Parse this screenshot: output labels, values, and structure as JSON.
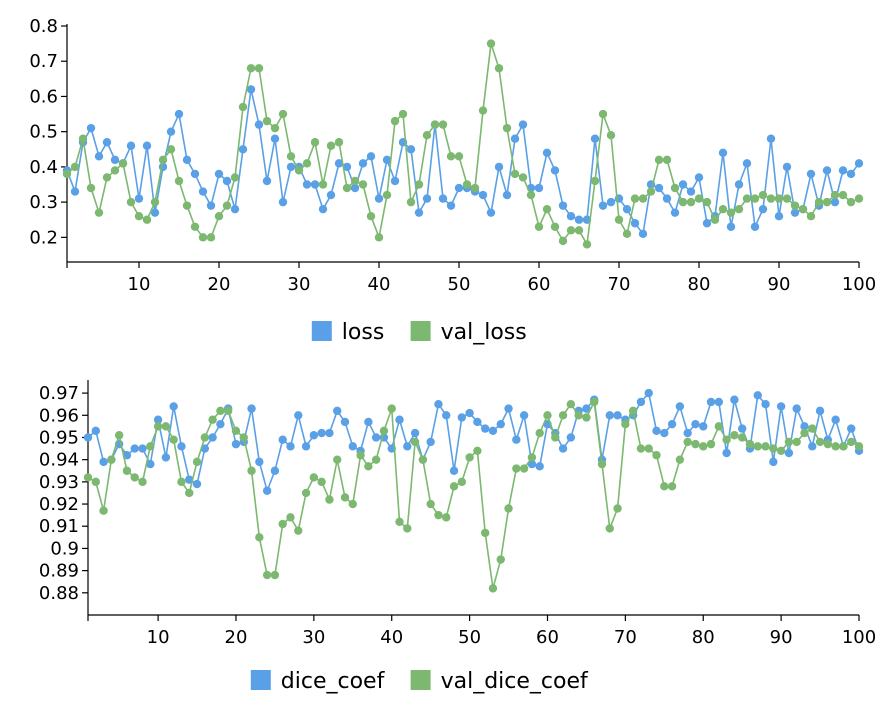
{
  "colors": {
    "series_a": "#5aa0e6",
    "series_b": "#7cb870"
  },
  "chart_data": [
    {
      "type": "line",
      "title": "",
      "xlabel": "",
      "ylabel": "",
      "xlim": [
        1,
        100
      ],
      "ylim": [
        0.13,
        0.8
      ],
      "x_ticks": [
        10,
        20,
        30,
        40,
        50,
        60,
        70,
        80,
        90,
        100
      ],
      "y_ticks": [
        0.2,
        0.3,
        0.4,
        0.5,
        0.6,
        0.7,
        0.8
      ],
      "grid": false,
      "legend_position": "bottom",
      "x": [
        1,
        2,
        3,
        4,
        5,
        6,
        7,
        8,
        9,
        10,
        11,
        12,
        13,
        14,
        15,
        16,
        17,
        18,
        19,
        20,
        21,
        22,
        23,
        24,
        25,
        26,
        27,
        28,
        29,
        30,
        31,
        32,
        33,
        34,
        35,
        36,
        37,
        38,
        39,
        40,
        41,
        42,
        43,
        44,
        45,
        46,
        47,
        48,
        49,
        50,
        51,
        52,
        53,
        54,
        55,
        56,
        57,
        58,
        59,
        60,
        61,
        62,
        63,
        64,
        65,
        66,
        67,
        68,
        69,
        70,
        71,
        72,
        73,
        74,
        75,
        76,
        77,
        78,
        79,
        80,
        81,
        82,
        83,
        84,
        85,
        86,
        87,
        88,
        89,
        90,
        91,
        92,
        93,
        94,
        95,
        96,
        97,
        98,
        99,
        100
      ],
      "series": [
        {
          "name": "loss",
          "color": "#5aa0e6",
          "values": [
            0.39,
            0.33,
            0.47,
            0.51,
            0.43,
            0.47,
            0.42,
            0.41,
            0.46,
            0.31,
            0.46,
            0.27,
            0.4,
            0.5,
            0.55,
            0.42,
            0.38,
            0.33,
            0.29,
            0.38,
            0.36,
            0.28,
            0.45,
            0.62,
            0.52,
            0.36,
            0.48,
            0.3,
            0.4,
            0.4,
            0.35,
            0.35,
            0.28,
            0.32,
            0.41,
            0.4,
            0.34,
            0.41,
            0.43,
            0.31,
            0.42,
            0.36,
            0.47,
            0.45,
            0.27,
            0.31,
            0.52,
            0.31,
            0.29,
            0.34,
            0.34,
            0.33,
            0.32,
            0.27,
            0.4,
            0.32,
            0.48,
            0.52,
            0.34,
            0.34,
            0.44,
            0.39,
            0.29,
            0.26,
            0.25,
            0.25,
            0.48,
            0.29,
            0.3,
            0.31,
            0.28,
            0.24,
            0.21,
            0.35,
            0.34,
            0.31,
            0.27,
            0.35,
            0.33,
            0.37,
            0.24,
            0.26,
            0.44,
            0.23,
            0.35,
            0.41,
            0.23,
            0.28,
            0.48,
            0.26,
            0.4,
            0.27,
            0.28,
            0.38,
            0.29,
            0.39,
            0.3,
            0.39,
            0.38,
            0.41
          ]
        },
        {
          "name": "val_loss",
          "color": "#7cb870",
          "values": [
            0.38,
            0.4,
            0.48,
            0.34,
            0.27,
            0.37,
            0.39,
            0.41,
            0.3,
            0.26,
            0.25,
            0.3,
            0.42,
            0.45,
            0.36,
            0.29,
            0.23,
            0.2,
            0.2,
            0.26,
            0.29,
            0.37,
            0.57,
            0.68,
            0.68,
            0.53,
            0.51,
            0.55,
            0.43,
            0.39,
            0.41,
            0.47,
            0.35,
            0.46,
            0.47,
            0.34,
            0.36,
            0.35,
            0.26,
            0.2,
            0.32,
            0.53,
            0.55,
            0.3,
            0.35,
            0.49,
            0.52,
            0.52,
            0.43,
            0.43,
            0.35,
            0.34,
            0.56,
            0.75,
            0.68,
            0.51,
            0.38,
            0.37,
            0.32,
            0.23,
            0.28,
            0.23,
            0.19,
            0.22,
            0.22,
            0.18,
            0.36,
            0.55,
            0.49,
            0.25,
            0.21,
            0.31,
            0.31,
            0.33,
            0.42,
            0.42,
            0.34,
            0.3,
            0.3,
            0.31,
            0.3,
            0.25,
            0.28,
            0.27,
            0.28,
            0.31,
            0.31,
            0.32,
            0.31,
            0.31,
            0.31,
            0.29,
            0.28,
            0.26,
            0.3,
            0.3,
            0.32,
            0.32,
            0.3,
            0.31
          ]
        }
      ]
    },
    {
      "type": "line",
      "title": "",
      "xlabel": "",
      "ylabel": "",
      "xlim": [
        1,
        100
      ],
      "ylim": [
        0.87,
        0.975
      ],
      "x_ticks": [
        10,
        20,
        30,
        40,
        50,
        60,
        70,
        80,
        90,
        100
      ],
      "y_ticks": [
        0.88,
        0.89,
        0.9,
        0.91,
        0.92,
        0.93,
        0.94,
        0.95,
        0.96,
        0.97
      ],
      "grid": false,
      "legend_position": "bottom",
      "x": [
        1,
        2,
        3,
        4,
        5,
        6,
        7,
        8,
        9,
        10,
        11,
        12,
        13,
        14,
        15,
        16,
        17,
        18,
        19,
        20,
        21,
        22,
        23,
        24,
        25,
        26,
        27,
        28,
        29,
        30,
        31,
        32,
        33,
        34,
        35,
        36,
        37,
        38,
        39,
        40,
        41,
        42,
        43,
        44,
        45,
        46,
        47,
        48,
        49,
        50,
        51,
        52,
        53,
        54,
        55,
        56,
        57,
        58,
        59,
        60,
        61,
        62,
        63,
        64,
        65,
        66,
        67,
        68,
        69,
        70,
        71,
        72,
        73,
        74,
        75,
        76,
        77,
        78,
        79,
        80,
        81,
        82,
        83,
        84,
        85,
        86,
        87,
        88,
        89,
        90,
        91,
        92,
        93,
        94,
        95,
        96,
        97,
        98,
        99,
        100
      ],
      "series": [
        {
          "name": "dice_coef",
          "color": "#5aa0e6",
          "values": [
            0.95,
            0.953,
            0.939,
            0.94,
            0.947,
            0.942,
            0.945,
            0.945,
            0.938,
            0.958,
            0.941,
            0.964,
            0.946,
            0.931,
            0.929,
            0.945,
            0.95,
            0.956,
            0.963,
            0.947,
            0.948,
            0.963,
            0.939,
            0.926,
            0.935,
            0.949,
            0.946,
            0.96,
            0.946,
            0.951,
            0.952,
            0.952,
            0.962,
            0.957,
            0.946,
            0.944,
            0.957,
            0.95,
            0.95,
            0.945,
            0.958,
            0.946,
            0.952,
            0.94,
            0.948,
            0.965,
            0.96,
            0.935,
            0.959,
            0.961,
            0.957,
            0.954,
            0.953,
            0.956,
            0.963,
            0.949,
            0.96,
            0.938,
            0.937,
            0.956,
            0.952,
            0.945,
            0.95,
            0.962,
            0.963,
            0.967,
            0.94,
            0.96,
            0.96,
            0.958,
            0.96,
            0.966,
            0.97,
            0.953,
            0.952,
            0.956,
            0.964,
            0.952,
            0.956,
            0.955,
            0.966,
            0.966,
            0.943,
            0.967,
            0.954,
            0.945,
            0.969,
            0.965,
            0.939,
            0.964,
            0.943,
            0.963,
            0.955,
            0.946,
            0.962,
            0.949,
            0.958,
            0.946,
            0.954,
            0.944
          ]
        },
        {
          "name": "val_dice_coef",
          "color": "#7cb870",
          "values": [
            0.932,
            0.93,
            0.917,
            0.94,
            0.951,
            0.935,
            0.932,
            0.93,
            0.946,
            0.955,
            0.955,
            0.949,
            0.93,
            0.925,
            0.939,
            0.95,
            0.958,
            0.962,
            0.962,
            0.953,
            0.95,
            0.935,
            0.905,
            0.888,
            0.888,
            0.911,
            0.914,
            0.908,
            0.925,
            0.932,
            0.93,
            0.922,
            0.94,
            0.923,
            0.92,
            0.942,
            0.937,
            0.94,
            0.953,
            0.963,
            0.912,
            0.909,
            0.948,
            0.94,
            0.92,
            0.915,
            0.914,
            0.928,
            0.93,
            0.941,
            0.944,
            0.907,
            0.882,
            0.895,
            0.918,
            0.936,
            0.936,
            0.941,
            0.952,
            0.96,
            0.95,
            0.96,
            0.965,
            0.96,
            0.959,
            0.966,
            0.938,
            0.909,
            0.918,
            0.956,
            0.962,
            0.945,
            0.945,
            0.942,
            0.928,
            0.928,
            0.94,
            0.948,
            0.947,
            0.946,
            0.947,
            0.955,
            0.949,
            0.951,
            0.95,
            0.947,
            0.946,
            0.946,
            0.945,
            0.944,
            0.948,
            0.948,
            0.952,
            0.954,
            0.948,
            0.947,
            0.946,
            0.946,
            0.948,
            0.946
          ]
        }
      ]
    }
  ]
}
